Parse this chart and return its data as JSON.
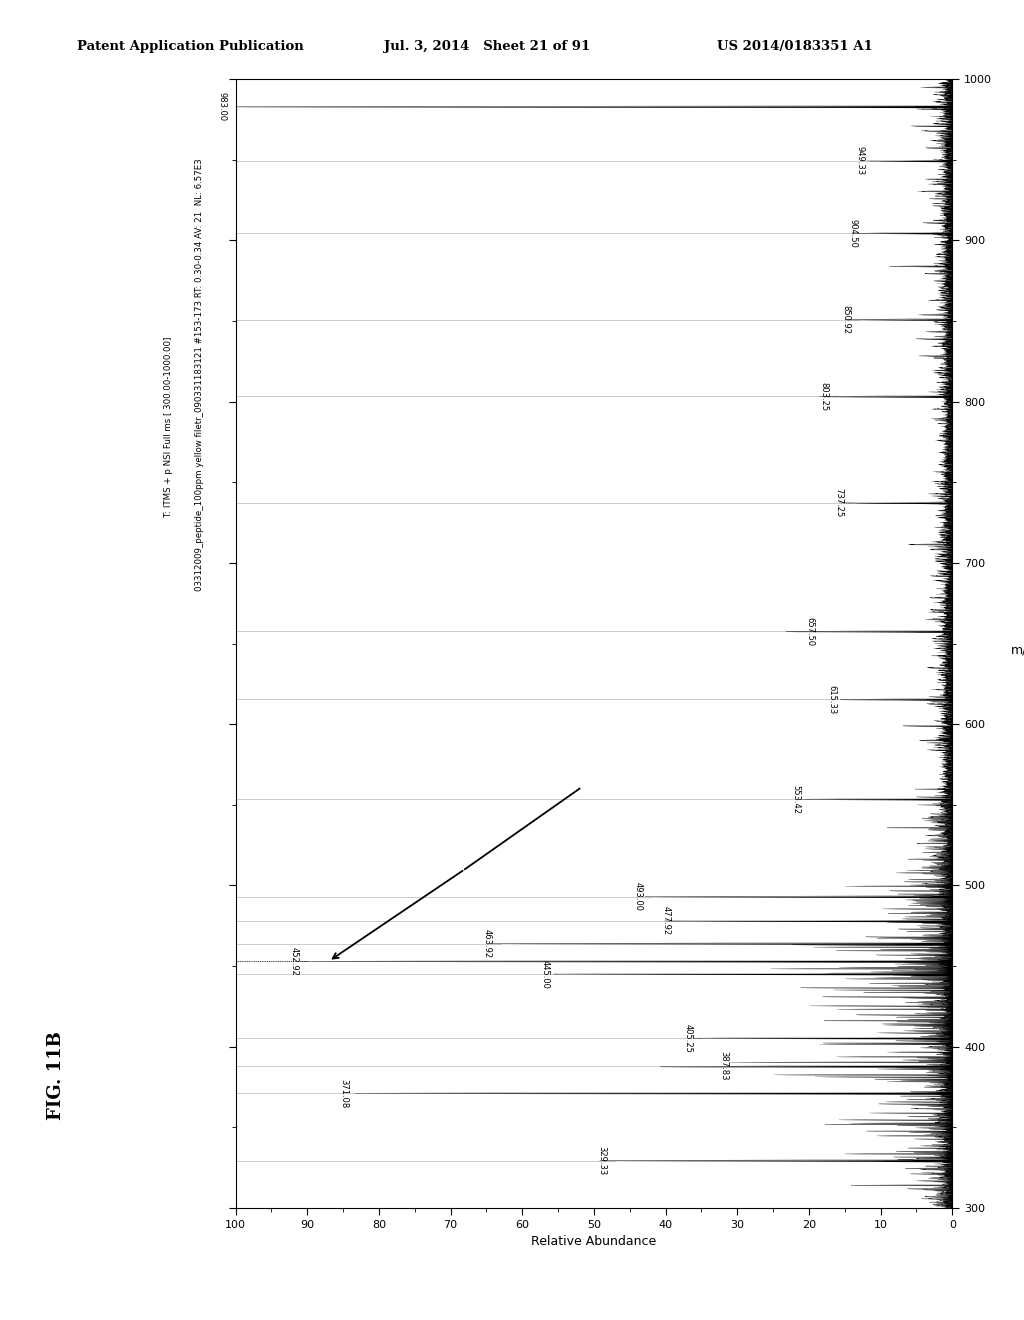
{
  "header_left": "Patent Application Publication",
  "header_mid": "Jul. 3, 2014   Sheet 21 of 91",
  "header_right": "US 2014/0183351 A1",
  "fig_label": "FIG. 11B",
  "scan_info_line1": "03312009_peptide_100ppm yellow filetr_090331183121 #153-173 RT: 0.30-0.34 AV: 21  NL: 6.57E3",
  "scan_info_line2": "T: ITMS + p NSI Full ms [ 300.00-1000.00]",
  "mz_label": "m/z",
  "abundance_label": "Relative Abundance",
  "mz_min": 300,
  "mz_max": 1000,
  "abundance_min": 0,
  "abundance_max": 100,
  "mz_ticks": [
    300,
    400,
    500,
    600,
    700,
    800,
    900,
    1000
  ],
  "abundance_ticks": [
    0,
    10,
    20,
    30,
    40,
    50,
    60,
    70,
    80,
    90,
    100
  ],
  "labeled_peaks": [
    {
      "mz": 329.33,
      "intensity": 47,
      "label": "329.33"
    },
    {
      "mz": 371.08,
      "intensity": 83,
      "label": "371.08"
    },
    {
      "mz": 387.83,
      "intensity": 30,
      "label": "387.83"
    },
    {
      "mz": 405.25,
      "intensity": 35,
      "label": "405.25"
    },
    {
      "mz": 445.0,
      "intensity": 55,
      "label": "445.00"
    },
    {
      "mz": 452.92,
      "intensity": 90,
      "label": "452.92"
    },
    {
      "mz": 463.92,
      "intensity": 63,
      "label": "463.92"
    },
    {
      "mz": 477.92,
      "intensity": 38,
      "label": "477.92"
    },
    {
      "mz": 493.0,
      "intensity": 42,
      "label": "493.00"
    },
    {
      "mz": 553.42,
      "intensity": 20,
      "label": "553.42"
    },
    {
      "mz": 615.33,
      "intensity": 15,
      "label": "615.33"
    },
    {
      "mz": 657.5,
      "intensity": 18,
      "label": "657.50"
    },
    {
      "mz": 737.25,
      "intensity": 14,
      "label": "737.25"
    },
    {
      "mz": 803.25,
      "intensity": 16,
      "label": "803.25"
    },
    {
      "mz": 850.92,
      "intensity": 13,
      "label": "850.92"
    },
    {
      "mz": 904.5,
      "intensity": 12,
      "label": "904.50"
    },
    {
      "mz": 949.33,
      "intensity": 11,
      "label": "949.33"
    },
    {
      "mz": 983.0,
      "intensity": 100,
      "label": "983.00"
    }
  ],
  "background_color": "#ffffff"
}
